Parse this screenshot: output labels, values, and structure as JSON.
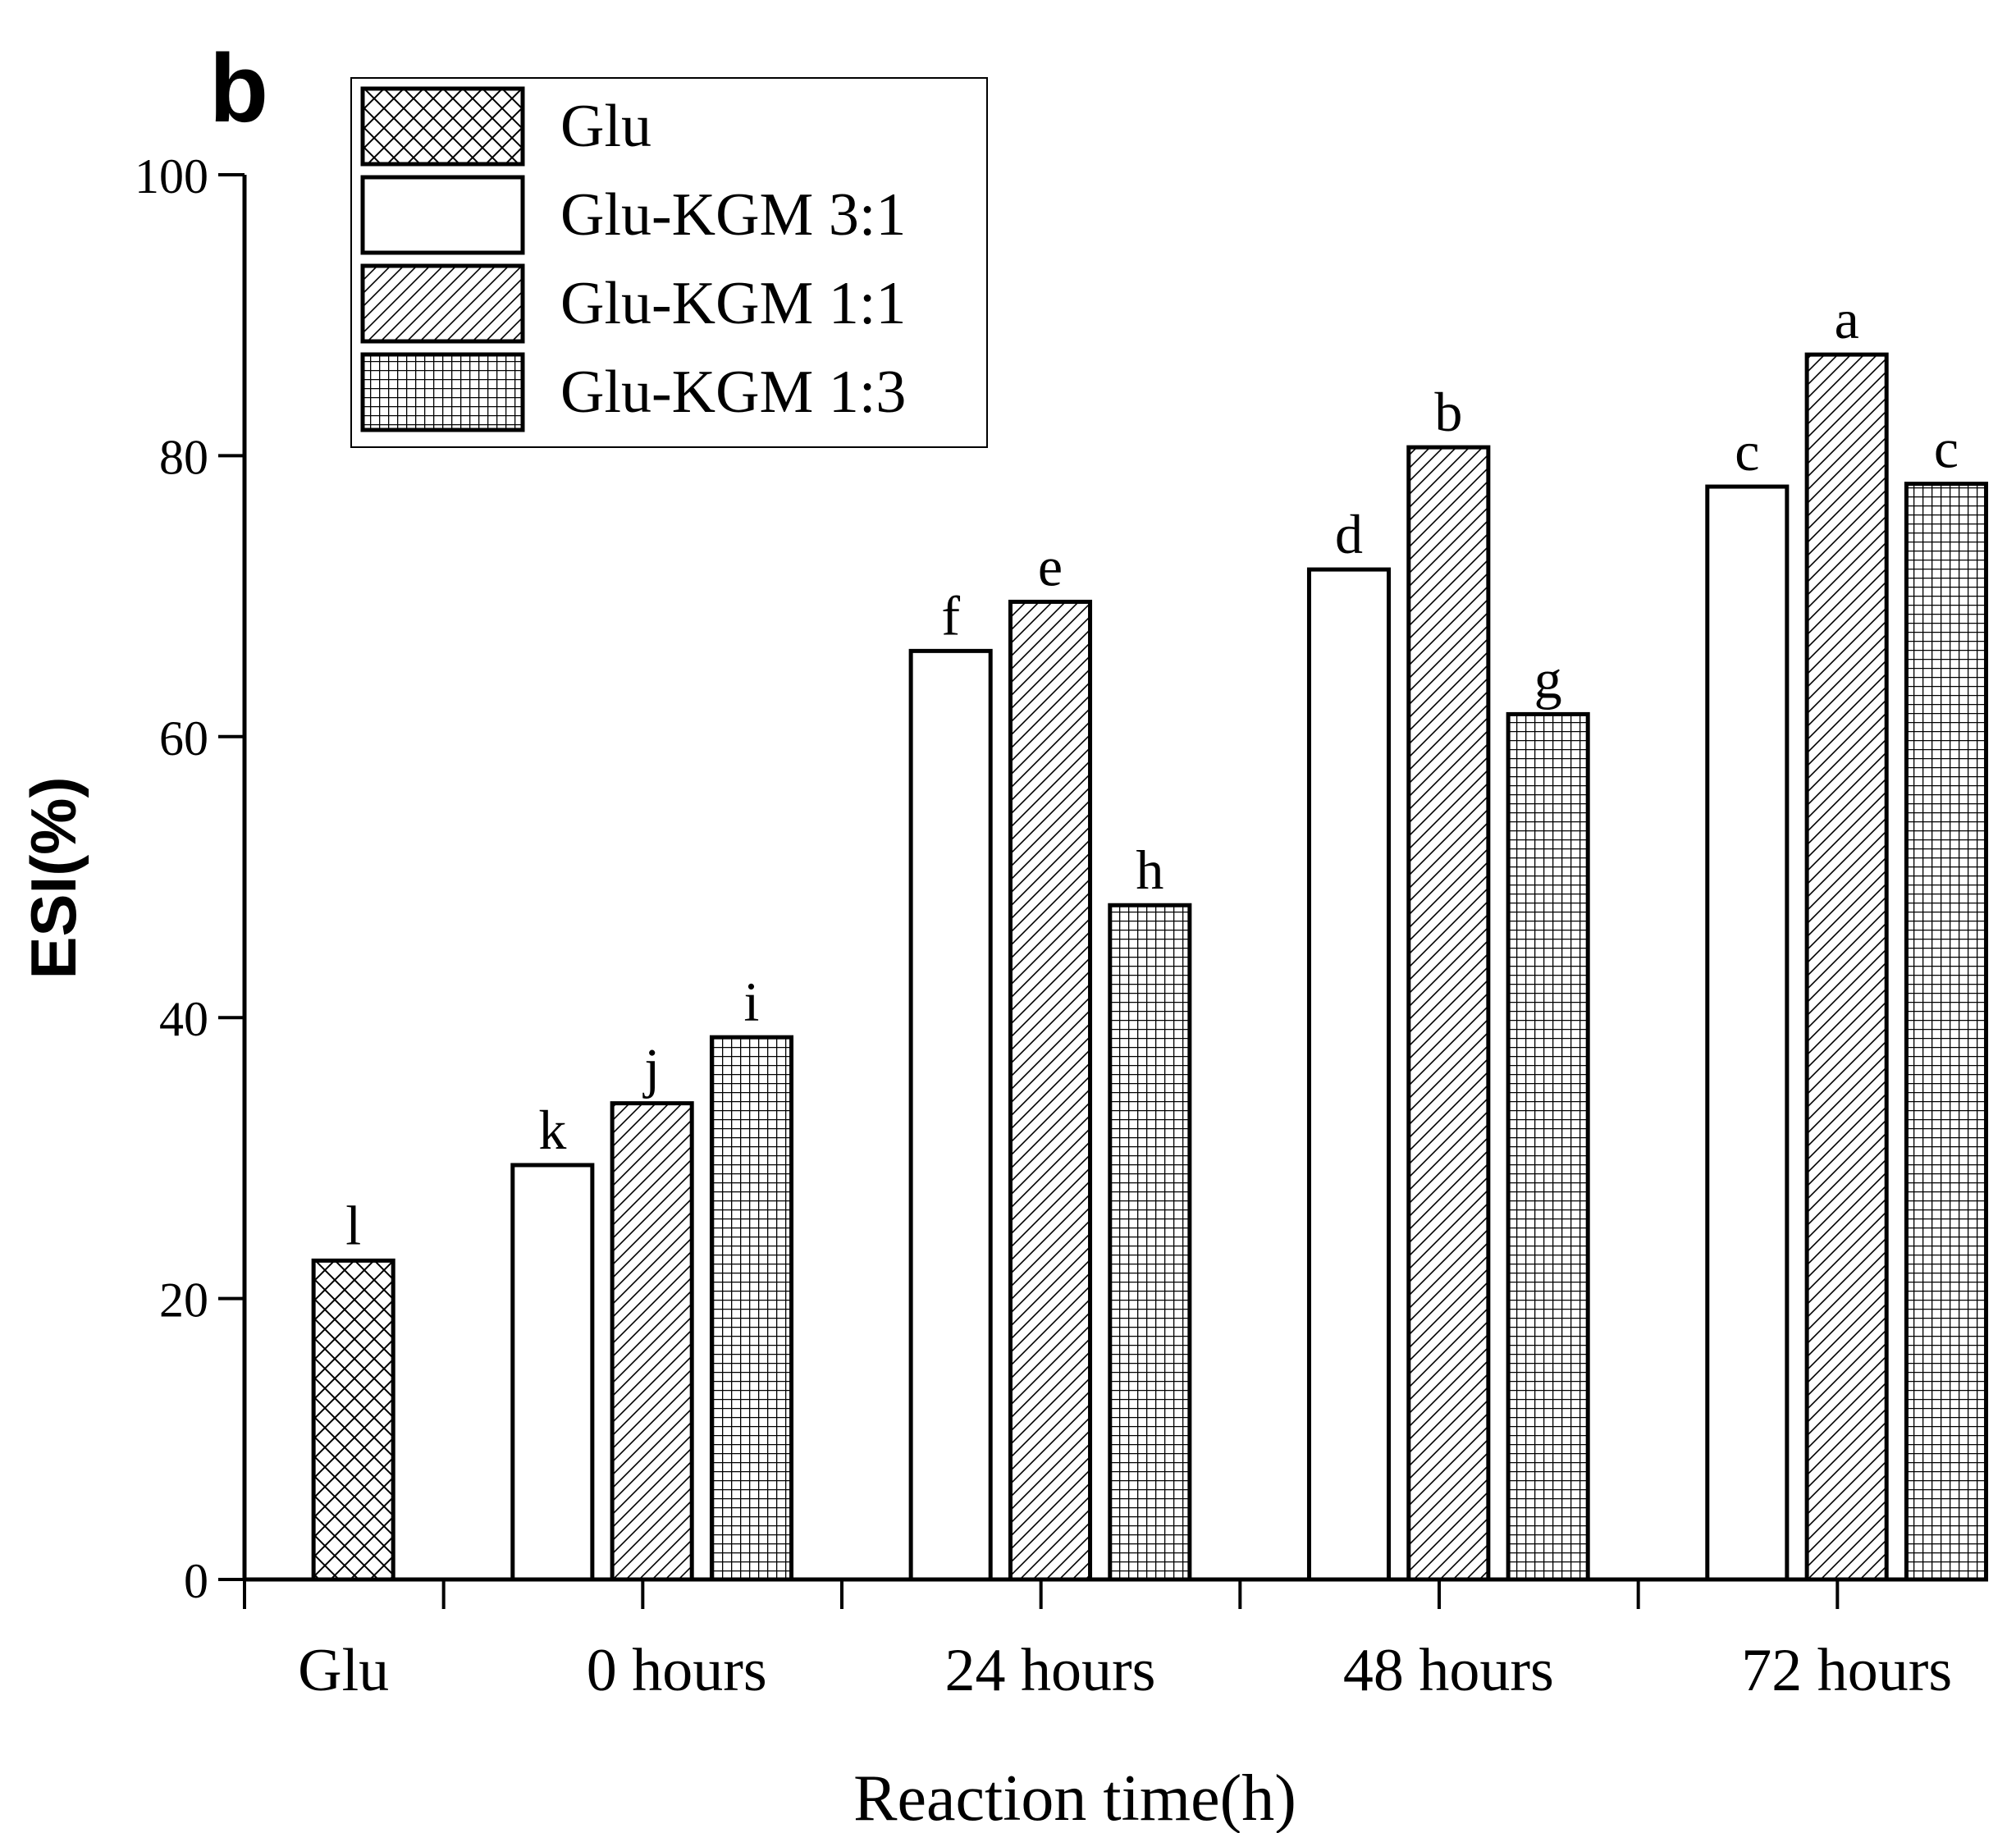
{
  "chart_data": {
    "type": "bar",
    "panel_label": "b",
    "title": "",
    "xlabel": "Reaction time(h)",
    "ylabel": "ESI(%)",
    "ylim": [
      0,
      100
    ],
    "yticks": [
      0,
      20,
      40,
      60,
      80,
      100
    ],
    "grid": false,
    "legend_position": "top-left",
    "groups": [
      {
        "label": "Glu",
        "bars": [
          {
            "series": "Glu",
            "value": 22.7,
            "letter": "l"
          }
        ]
      },
      {
        "label": "0 hours",
        "bars": [
          {
            "series": "Glu-KGM 3:1",
            "value": 29.5,
            "letter": "k"
          },
          {
            "series": "Glu-KGM 1:1",
            "value": 33.9,
            "letter": "j"
          },
          {
            "series": "Glu-KGM 1:3",
            "value": 38.6,
            "letter": "i"
          }
        ]
      },
      {
        "label": "24 hours",
        "bars": [
          {
            "series": "Glu-KGM 3:1",
            "value": 66.1,
            "letter": "f"
          },
          {
            "series": "Glu-KGM 1:1",
            "value": 69.6,
            "letter": "e"
          },
          {
            "series": "Glu-KGM 1:3",
            "value": 48.0,
            "letter": "h"
          }
        ]
      },
      {
        "label": "48 hours",
        "bars": [
          {
            "series": "Glu-KGM 3:1",
            "value": 71.9,
            "letter": "d"
          },
          {
            "series": "Glu-KGM 1:1",
            "value": 80.6,
            "letter": "b"
          },
          {
            "series": "Glu-KGM 1:3",
            "value": 61.6,
            "letter": "g"
          }
        ]
      },
      {
        "label": "72 hours",
        "bars": [
          {
            "series": "Glu-KGM 3:1",
            "value": 77.8,
            "letter": "c"
          },
          {
            "series": "Glu-KGM 1:1",
            "value": 87.2,
            "letter": "a"
          },
          {
            "series": "Glu-KGM 1:3",
            "value": 78.0,
            "letter": "c"
          }
        ]
      }
    ],
    "series": [
      {
        "name": "Glu",
        "pattern": "crosshatch"
      },
      {
        "name": "Glu-KGM 3:1",
        "pattern": "none"
      },
      {
        "name": "Glu-KGM 1:1",
        "pattern": "diagonal"
      },
      {
        "name": "Glu-KGM 1:3",
        "pattern": "grid"
      }
    ],
    "colors": {
      "stroke": "#000000",
      "fill": "#ffffff"
    }
  }
}
